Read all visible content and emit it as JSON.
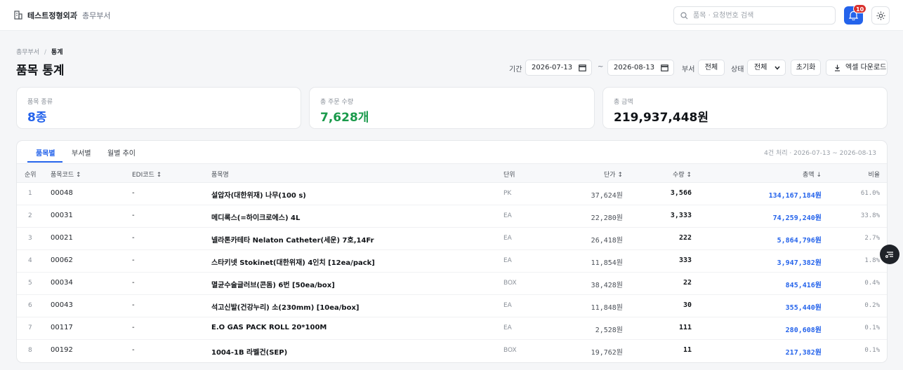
{
  "header": {
    "brand": "테스트정형외과",
    "separator": "/",
    "section": "총무부서",
    "search_placeholder": "품목 · 요청번호 검색",
    "notification_count": "10"
  },
  "breadcrumb": {
    "parent": "총무부서",
    "separator": "/",
    "current": "통계"
  },
  "page_title": "품목 통계",
  "filters": {
    "period_label": "기간",
    "start_date": "2026-07-13",
    "tilde": "~",
    "end_date": "2026-08-13",
    "dept_label": "부서",
    "dept_value": "전체",
    "status_label": "상태",
    "status_value": "전체",
    "reset_label": "초기화",
    "excel_label": "엑셀 다운로드"
  },
  "stats": [
    {
      "label": "품목 종류",
      "value": "8종",
      "color": "#2463eb"
    },
    {
      "label": "총 주문 수량",
      "value": "7,628개",
      "color": "#1a9a4b"
    },
    {
      "label": "총 금액",
      "value": "219,937,448원",
      "color": "#111418"
    }
  ],
  "tabs": [
    "품목별",
    "부서별",
    "월별 추이"
  ],
  "active_tab": "품목별",
  "summary": "4건 처리 · 2026-07-13 ~ 2026-08-13",
  "columns": {
    "idx": "순위",
    "code": "품목코드 ↕",
    "edi": "EDI코드 ↕",
    "name": "품목명",
    "unit": "단위",
    "price": "단가 ↕",
    "qty": "수량 ↕",
    "total": "총액 ↓",
    "ratio": "비율"
  },
  "rows": [
    {
      "idx": "1",
      "code": "00048",
      "edi": "-",
      "name": "설압자(대한위재) 나무(100 s)",
      "unit": "PK",
      "price": "37,624원",
      "qty": "3,566",
      "total": "134,167,184원",
      "ratio": "61.0%"
    },
    {
      "idx": "2",
      "code": "00031",
      "edi": "-",
      "name": "메디록스(=하이크로에스) 4L",
      "unit": "EA",
      "price": "22,280원",
      "qty": "3,333",
      "total": "74,259,240원",
      "ratio": "33.8%"
    },
    {
      "idx": "3",
      "code": "00021",
      "edi": "-",
      "name": "넬라톤카테타 Nelaton Catheter(세운) 7호,14Fr",
      "unit": "EA",
      "price": "26,418원",
      "qty": "222",
      "total": "5,864,796원",
      "ratio": "2.7%"
    },
    {
      "idx": "4",
      "code": "00062",
      "edi": "-",
      "name": "스타키넷 Stokinet(대한위재) 4인치 [12ea/pack]",
      "unit": "EA",
      "price": "11,854원",
      "qty": "333",
      "total": "3,947,382원",
      "ratio": "1.8%"
    },
    {
      "idx": "5",
      "code": "00034",
      "edi": "-",
      "name": "멸균수술글러브(콘돔) 6번 [50ea/box]",
      "unit": "BOX",
      "price": "38,428원",
      "qty": "22",
      "total": "845,416원",
      "ratio": "0.4%"
    },
    {
      "idx": "6",
      "code": "00043",
      "edi": "-",
      "name": "석고신발(건강누리) 소(230mm) [10ea/box]",
      "unit": "EA",
      "price": "11,848원",
      "qty": "30",
      "total": "355,440원",
      "ratio": "0.2%"
    },
    {
      "idx": "7",
      "code": "00117",
      "edi": "-",
      "name": "E.O GAS PACK ROLL 20*100M",
      "unit": "EA",
      "price": "2,528원",
      "qty": "111",
      "total": "280,608원",
      "ratio": "0.1%"
    },
    {
      "idx": "8",
      "code": "00192",
      "edi": "-",
      "name": "1004-1B 라벨건(SEP)",
      "unit": "BOX",
      "price": "19,762원",
      "qty": "11",
      "total": "217,382원",
      "ratio": "0.1%"
    }
  ]
}
